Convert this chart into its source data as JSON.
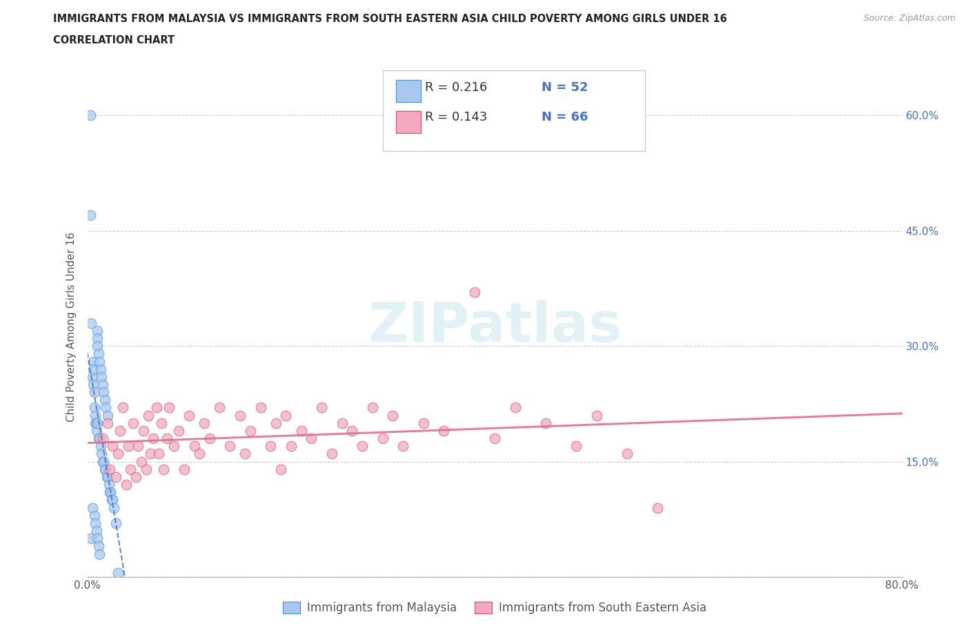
{
  "title_line1": "IMMIGRANTS FROM MALAYSIA VS IMMIGRANTS FROM SOUTH EASTERN ASIA CHILD POVERTY AMONG GIRLS UNDER 16",
  "title_line2": "CORRELATION CHART",
  "source_text": "Source: ZipAtlas.com",
  "ylabel": "Child Poverty Among Girls Under 16",
  "xlim": [
    0.0,
    0.8
  ],
  "ylim": [
    0.0,
    0.65
  ],
  "x_ticks": [
    0.0,
    0.1,
    0.2,
    0.3,
    0.4,
    0.5,
    0.6,
    0.7,
    0.8
  ],
  "x_tick_labels": [
    "0.0%",
    "",
    "",
    "",
    "",
    "",
    "",
    "",
    "80.0%"
  ],
  "y_ticks": [
    0.0,
    0.15,
    0.3,
    0.45,
    0.6
  ],
  "y_tick_labels_right": [
    "",
    "15.0%",
    "30.0%",
    "45.0%",
    "60.0%"
  ],
  "watermark": "ZIPatlas",
  "color_blue": "#A8C8F0",
  "color_blue_edge": "#5B9BD5",
  "color_pink": "#F4AABC",
  "color_pink_edge": "#D06080",
  "color_blue_line": "#4472C4",
  "color_pink_line": "#E07090",
  "color_text_blue": "#4472C4",
  "color_grid": "#CCCCCC",
  "malaysia_x": [
    0.003,
    0.003,
    0.004,
    0.004,
    0.005,
    0.005,
    0.006,
    0.006,
    0.006,
    0.007,
    0.007,
    0.007,
    0.008,
    0.008,
    0.008,
    0.009,
    0.009,
    0.009,
    0.01,
    0.01,
    0.01,
    0.01,
    0.01,
    0.011,
    0.011,
    0.011,
    0.012,
    0.012,
    0.012,
    0.013,
    0.013,
    0.014,
    0.014,
    0.015,
    0.015,
    0.016,
    0.016,
    0.017,
    0.017,
    0.018,
    0.018,
    0.019,
    0.02,
    0.02,
    0.021,
    0.022,
    0.023,
    0.024,
    0.025,
    0.026,
    0.028,
    0.03
  ],
  "malaysia_y": [
    0.6,
    0.47,
    0.33,
    0.05,
    0.26,
    0.09,
    0.28,
    0.27,
    0.25,
    0.24,
    0.22,
    0.08,
    0.21,
    0.2,
    0.07,
    0.2,
    0.19,
    0.06,
    0.32,
    0.31,
    0.3,
    0.2,
    0.05,
    0.29,
    0.18,
    0.04,
    0.28,
    0.18,
    0.03,
    0.27,
    0.17,
    0.26,
    0.16,
    0.25,
    0.15,
    0.24,
    0.15,
    0.23,
    0.14,
    0.22,
    0.14,
    0.13,
    0.21,
    0.13,
    0.12,
    0.11,
    0.11,
    0.1,
    0.1,
    0.09,
    0.07,
    0.005
  ],
  "sea_x": [
    0.015,
    0.02,
    0.022,
    0.025,
    0.028,
    0.03,
    0.032,
    0.035,
    0.038,
    0.04,
    0.042,
    0.045,
    0.048,
    0.05,
    0.053,
    0.055,
    0.058,
    0.06,
    0.062,
    0.065,
    0.068,
    0.07,
    0.073,
    0.075,
    0.078,
    0.08,
    0.085,
    0.09,
    0.095,
    0.1,
    0.105,
    0.11,
    0.115,
    0.12,
    0.13,
    0.14,
    0.15,
    0.155,
    0.16,
    0.17,
    0.18,
    0.185,
    0.19,
    0.195,
    0.2,
    0.21,
    0.22,
    0.23,
    0.24,
    0.25,
    0.26,
    0.27,
    0.28,
    0.29,
    0.3,
    0.31,
    0.33,
    0.35,
    0.38,
    0.4,
    0.42,
    0.45,
    0.48,
    0.5,
    0.53,
    0.56
  ],
  "sea_y": [
    0.18,
    0.2,
    0.14,
    0.17,
    0.13,
    0.16,
    0.19,
    0.22,
    0.12,
    0.17,
    0.14,
    0.2,
    0.13,
    0.17,
    0.15,
    0.19,
    0.14,
    0.21,
    0.16,
    0.18,
    0.22,
    0.16,
    0.2,
    0.14,
    0.18,
    0.22,
    0.17,
    0.19,
    0.14,
    0.21,
    0.17,
    0.16,
    0.2,
    0.18,
    0.22,
    0.17,
    0.21,
    0.16,
    0.19,
    0.22,
    0.17,
    0.2,
    0.14,
    0.21,
    0.17,
    0.19,
    0.18,
    0.22,
    0.16,
    0.2,
    0.19,
    0.17,
    0.22,
    0.18,
    0.21,
    0.17,
    0.2,
    0.19,
    0.37,
    0.18,
    0.22,
    0.2,
    0.17,
    0.21,
    0.16,
    0.09
  ]
}
